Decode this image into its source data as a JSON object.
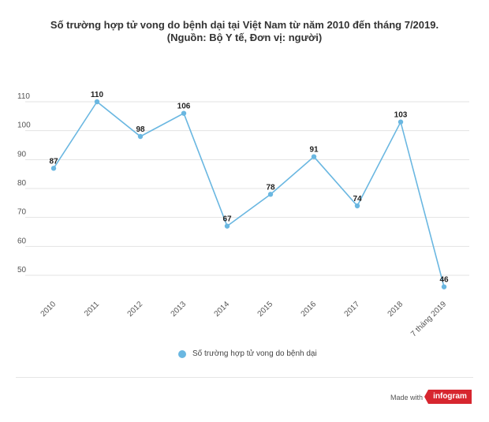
{
  "title_line1": "Số trường hợp tử vong do bệnh dại tại Việt Nam từ năm 2010 đến tháng 7/2019.",
  "title_line2": "(Nguồn: Bộ Y tế, Đơn vị: người)",
  "chart_data": {
    "type": "line",
    "categories": [
      "2010",
      "2011",
      "2012",
      "2013",
      "2014",
      "2015",
      "2016",
      "2017",
      "2018",
      "7 tháng 2019"
    ],
    "series": [
      {
        "name": "Số trường hợp tử vong do bệnh dại",
        "values": [
          87,
          110,
          98,
          106,
          67,
          78,
          91,
          74,
          103,
          46
        ]
      }
    ],
    "y_ticks": [
      50,
      60,
      70,
      80,
      90,
      100,
      110
    ],
    "ylim": [
      44,
      113
    ],
    "grid": true,
    "legend_position": "bottom",
    "line_color": "#6ab7e1"
  },
  "legend": {
    "label": "Số trường hợp tử vong do bệnh dại"
  },
  "footer": {
    "made_with": "Made with",
    "brand": "infogram"
  }
}
